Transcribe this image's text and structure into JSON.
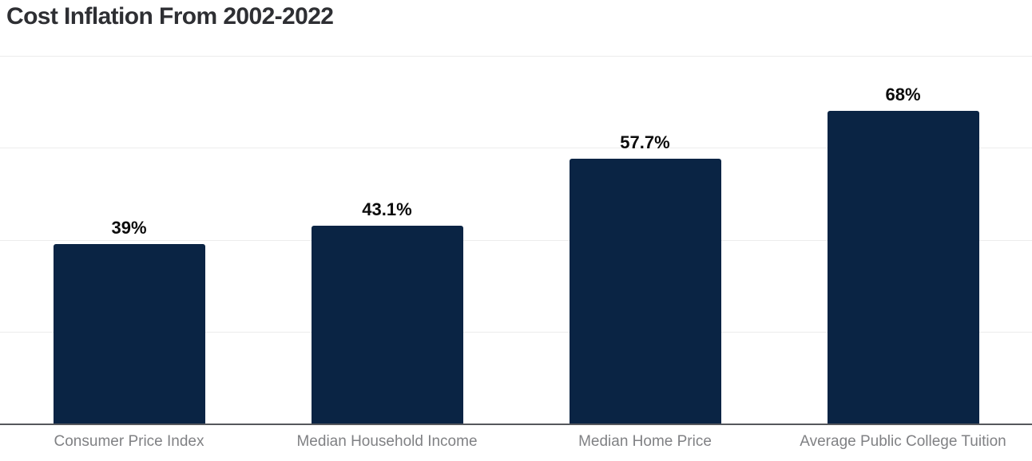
{
  "chart_data": {
    "type": "bar",
    "title": "Cost Inflation From 2002-2022",
    "categories": [
      "Consumer Price Index",
      "Median Household Income",
      "Median Home Price",
      "Average Public College Tuition"
    ],
    "values": [
      39,
      43.1,
      57.7,
      68
    ],
    "value_labels": [
      "39%",
      "43.1%",
      "57.7%",
      "68%"
    ],
    "xlabel": "",
    "ylabel": "",
    "ylim": [
      0,
      80
    ],
    "gridline_step": 20,
    "grid": true,
    "legend": false,
    "y_axis_tick_labels_visible": false
  },
  "style": {
    "background": "#ffffff",
    "bar_color": "#0a2444",
    "title_color": "#2e2f33",
    "value_label_color": "#0b0b0b",
    "category_label_color": "#808184",
    "gridline_color": "#ececec",
    "axis_line_color": "#55575c"
  }
}
